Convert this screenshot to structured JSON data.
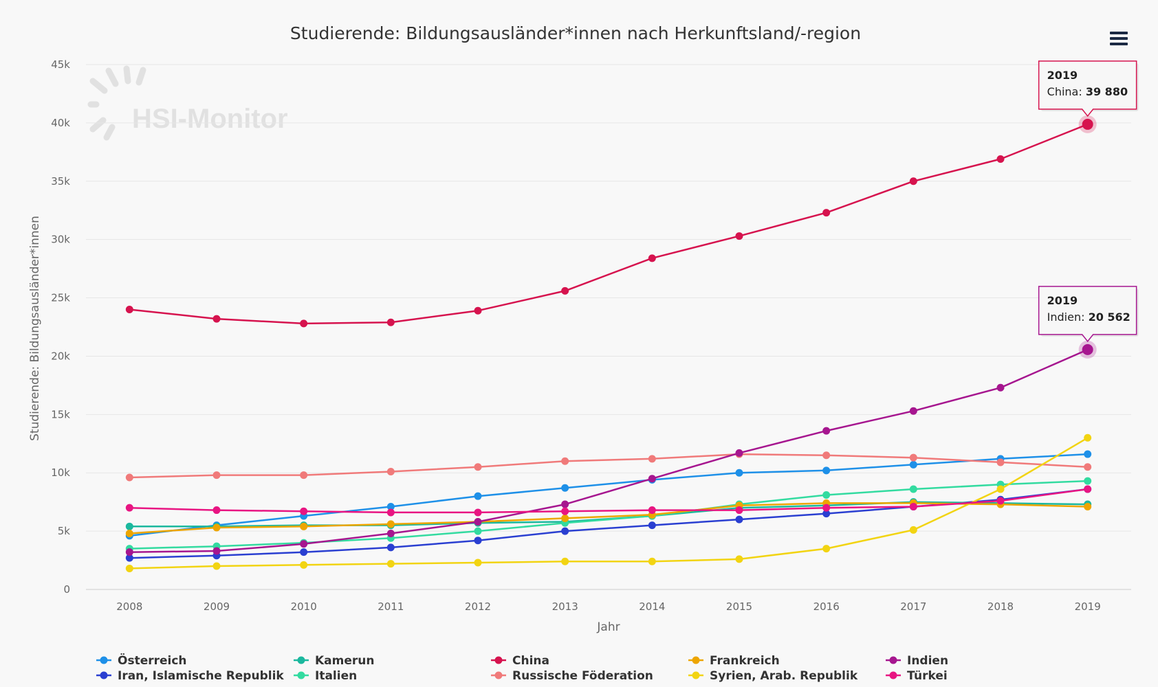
{
  "chart_data": {
    "type": "line",
    "title": "Studierende: Bildungsausländer*innen nach Herkunftsland/-region",
    "xlabel": "Jahr",
    "ylabel": "Studierende: Bildungsausländer*innen",
    "categories": [
      "2008",
      "2009",
      "2010",
      "2011",
      "2012",
      "2013",
      "2014",
      "2015",
      "2016",
      "2017",
      "2018",
      "2019"
    ],
    "ylim": [
      0,
      45000
    ],
    "yticks": [
      {
        "value": 0,
        "label": "0"
      },
      {
        "value": 5000,
        "label": "5k"
      },
      {
        "value": 10000,
        "label": "10k"
      },
      {
        "value": 15000,
        "label": "15k"
      },
      {
        "value": 20000,
        "label": "20k"
      },
      {
        "value": 25000,
        "label": "25k"
      },
      {
        "value": 30000,
        "label": "30k"
      },
      {
        "value": 35000,
        "label": "35k"
      },
      {
        "value": 40000,
        "label": "40k"
      },
      {
        "value": 45000,
        "label": "45k"
      }
    ],
    "grid": true,
    "legend_position": "bottom",
    "watermark": "HSI-Monitor",
    "series": [
      {
        "name": "Österreich",
        "color": "#1e90e8",
        "values": [
          4600,
          5500,
          6300,
          7100,
          8000,
          8700,
          9400,
          10000,
          10200,
          10700,
          11200,
          11600
        ]
      },
      {
        "name": "Iran, Islamische Republik",
        "color": "#2a3fd1",
        "values": [
          2700,
          2900,
          3200,
          3600,
          4200,
          5000,
          5500,
          6000,
          6500,
          7100,
          7700,
          8600
        ]
      },
      {
        "name": "Kamerun",
        "color": "#1bb89e",
        "values": [
          5400,
          5400,
          5500,
          5500,
          5700,
          5800,
          6300,
          7000,
          7200,
          7500,
          7400,
          7300
        ]
      },
      {
        "name": "Italien",
        "color": "#33dba0",
        "values": [
          3500,
          3700,
          4000,
          4400,
          5000,
          5700,
          6300,
          7300,
          8100,
          8600,
          9000,
          9300
        ]
      },
      {
        "name": "China",
        "color": "#d6134e",
        "values": [
          24000,
          23200,
          22800,
          22900,
          23900,
          25600,
          28400,
          30300,
          32300,
          35000,
          36900,
          39880
        ]
      },
      {
        "name": "Russische Föderation",
        "color": "#f07a7a",
        "values": [
          9600,
          9800,
          9800,
          10100,
          10500,
          11000,
          11200,
          11600,
          11500,
          11300,
          10900,
          10500
        ]
      },
      {
        "name": "Frankreich",
        "color": "#eda500",
        "values": [
          4800,
          5300,
          5400,
          5600,
          5800,
          6100,
          6400,
          7200,
          7400,
          7400,
          7300,
          7100
        ]
      },
      {
        "name": "Syrien, Arab. Republik",
        "color": "#f2d412",
        "values": [
          1800,
          2000,
          2100,
          2200,
          2300,
          2400,
          2400,
          2600,
          3500,
          5100,
          8600,
          13000
        ]
      },
      {
        "name": "Indien",
        "color": "#a6168f",
        "values": [
          3200,
          3300,
          3900,
          4800,
          5800,
          7300,
          9500,
          11700,
          13600,
          15300,
          17300,
          20562
        ]
      },
      {
        "name": "Türkei",
        "color": "#e81582",
        "values": [
          7000,
          6800,
          6700,
          6600,
          6600,
          6700,
          6800,
          6800,
          7000,
          7100,
          7600,
          8600
        ]
      }
    ],
    "tooltips": [
      {
        "series": "China",
        "year": "2019",
        "label": "China",
        "value": "39 880"
      },
      {
        "series": "Indien",
        "year": "2019",
        "label": "Indien",
        "value": "20 562"
      }
    ]
  },
  "menu": {
    "icon": "hamburger-menu-icon"
  }
}
